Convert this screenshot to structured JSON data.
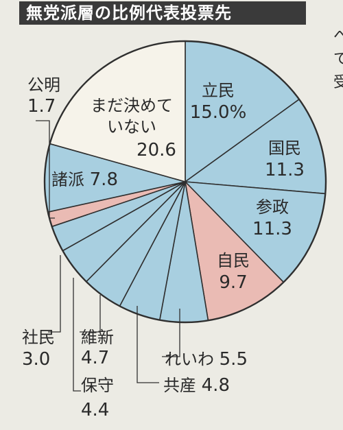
{
  "header": {
    "title": "無党派層の比例代表投票先"
  },
  "colors": {
    "blue": "#a8cfe0",
    "pink": "#eabbb4",
    "white": "#f6f3ea",
    "outline": "#2f2f2f",
    "title_bg": "#3a3a3a"
  },
  "chart_data": {
    "type": "pie",
    "title": "無党派層の比例代表投票先",
    "slices": [
      {
        "label": "立民",
        "value": 15.0,
        "display": "15.0%",
        "color": "blue"
      },
      {
        "label": "国民",
        "value": 11.3,
        "display": "11.3",
        "color": "blue"
      },
      {
        "label": "参政",
        "value": 11.3,
        "display": "11.3",
        "color": "blue"
      },
      {
        "label": "自民",
        "value": 9.7,
        "display": "9.7",
        "color": "pink"
      },
      {
        "label": "れいわ",
        "value": 5.5,
        "display": "5.5",
        "color": "blue"
      },
      {
        "label": "共産",
        "value": 4.8,
        "display": "4.8",
        "color": "blue"
      },
      {
        "label": "維新",
        "value": 4.7,
        "display": "4.7",
        "color": "blue"
      },
      {
        "label": "保守",
        "value": 4.4,
        "display": "4.4",
        "color": "blue"
      },
      {
        "label": "社民",
        "value": 3.0,
        "display": "3.0",
        "color": "blue"
      },
      {
        "label": "公明",
        "value": 1.7,
        "display": "1.7",
        "color": "pink"
      },
      {
        "label": "諸派",
        "value": 7.8,
        "display": "7.8",
        "color": "blue"
      },
      {
        "label": "まだ決めていない",
        "value": 20.6,
        "display": "20.6",
        "color": "white"
      }
    ]
  }
}
